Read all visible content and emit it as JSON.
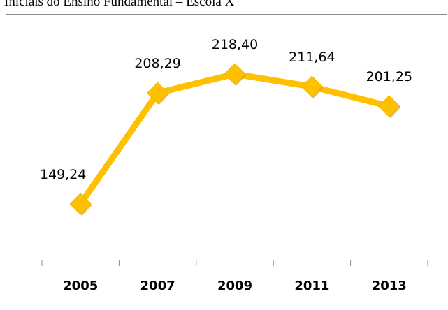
{
  "chart_data": {
    "type": "line",
    "title": "Iniciais do Ensino Fundamental – Escola X",
    "categories": [
      "2005",
      "2007",
      "2009",
      "2011",
      "2013"
    ],
    "values": [
      149.24,
      208.29,
      218.4,
      211.64,
      201.25
    ],
    "value_labels": [
      "149,24",
      "208,29",
      "218,40",
      "211,64",
      "201,25"
    ],
    "color": "#ffc000"
  }
}
